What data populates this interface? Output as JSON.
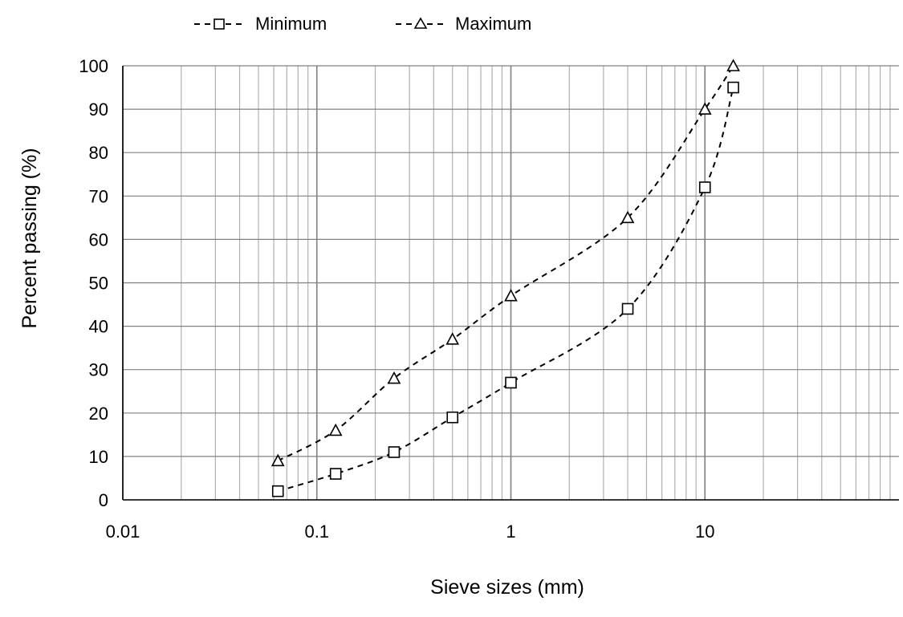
{
  "chart_data": {
    "type": "line",
    "title": "",
    "xlabel": "Sieve sizes (mm)",
    "ylabel": "Percent passing (%)",
    "xscale": "log",
    "xlim": [
      0.01,
      100
    ],
    "ylim": [
      0,
      100
    ],
    "grid": true,
    "legend_position": "top",
    "x_tick_labels": [
      "0.01",
      "0.1",
      "1",
      "10"
    ],
    "y_tick_labels": [
      "0",
      "10",
      "20",
      "30",
      "40",
      "50",
      "60",
      "70",
      "80",
      "90",
      "100"
    ],
    "series": [
      {
        "name": "Minimum",
        "marker": "square",
        "line_style": "dashed",
        "color": "#000000",
        "x": [
          0.063,
          0.125,
          0.25,
          0.5,
          1,
          4,
          10,
          14
        ],
        "y": [
          2,
          6,
          11,
          19,
          27,
          44,
          72,
          95
        ]
      },
      {
        "name": "Maximum",
        "marker": "triangle",
        "line_style": "dashed",
        "color": "#000000",
        "x": [
          0.063,
          0.125,
          0.25,
          0.5,
          1,
          4,
          10,
          14
        ],
        "y": [
          9,
          16,
          28,
          37,
          47,
          65,
          90,
          100
        ]
      }
    ]
  },
  "colors": {
    "grid_major": "#808080",
    "grid_minor": "#b0b0b0",
    "axis": "#000000",
    "series": "#000000"
  }
}
